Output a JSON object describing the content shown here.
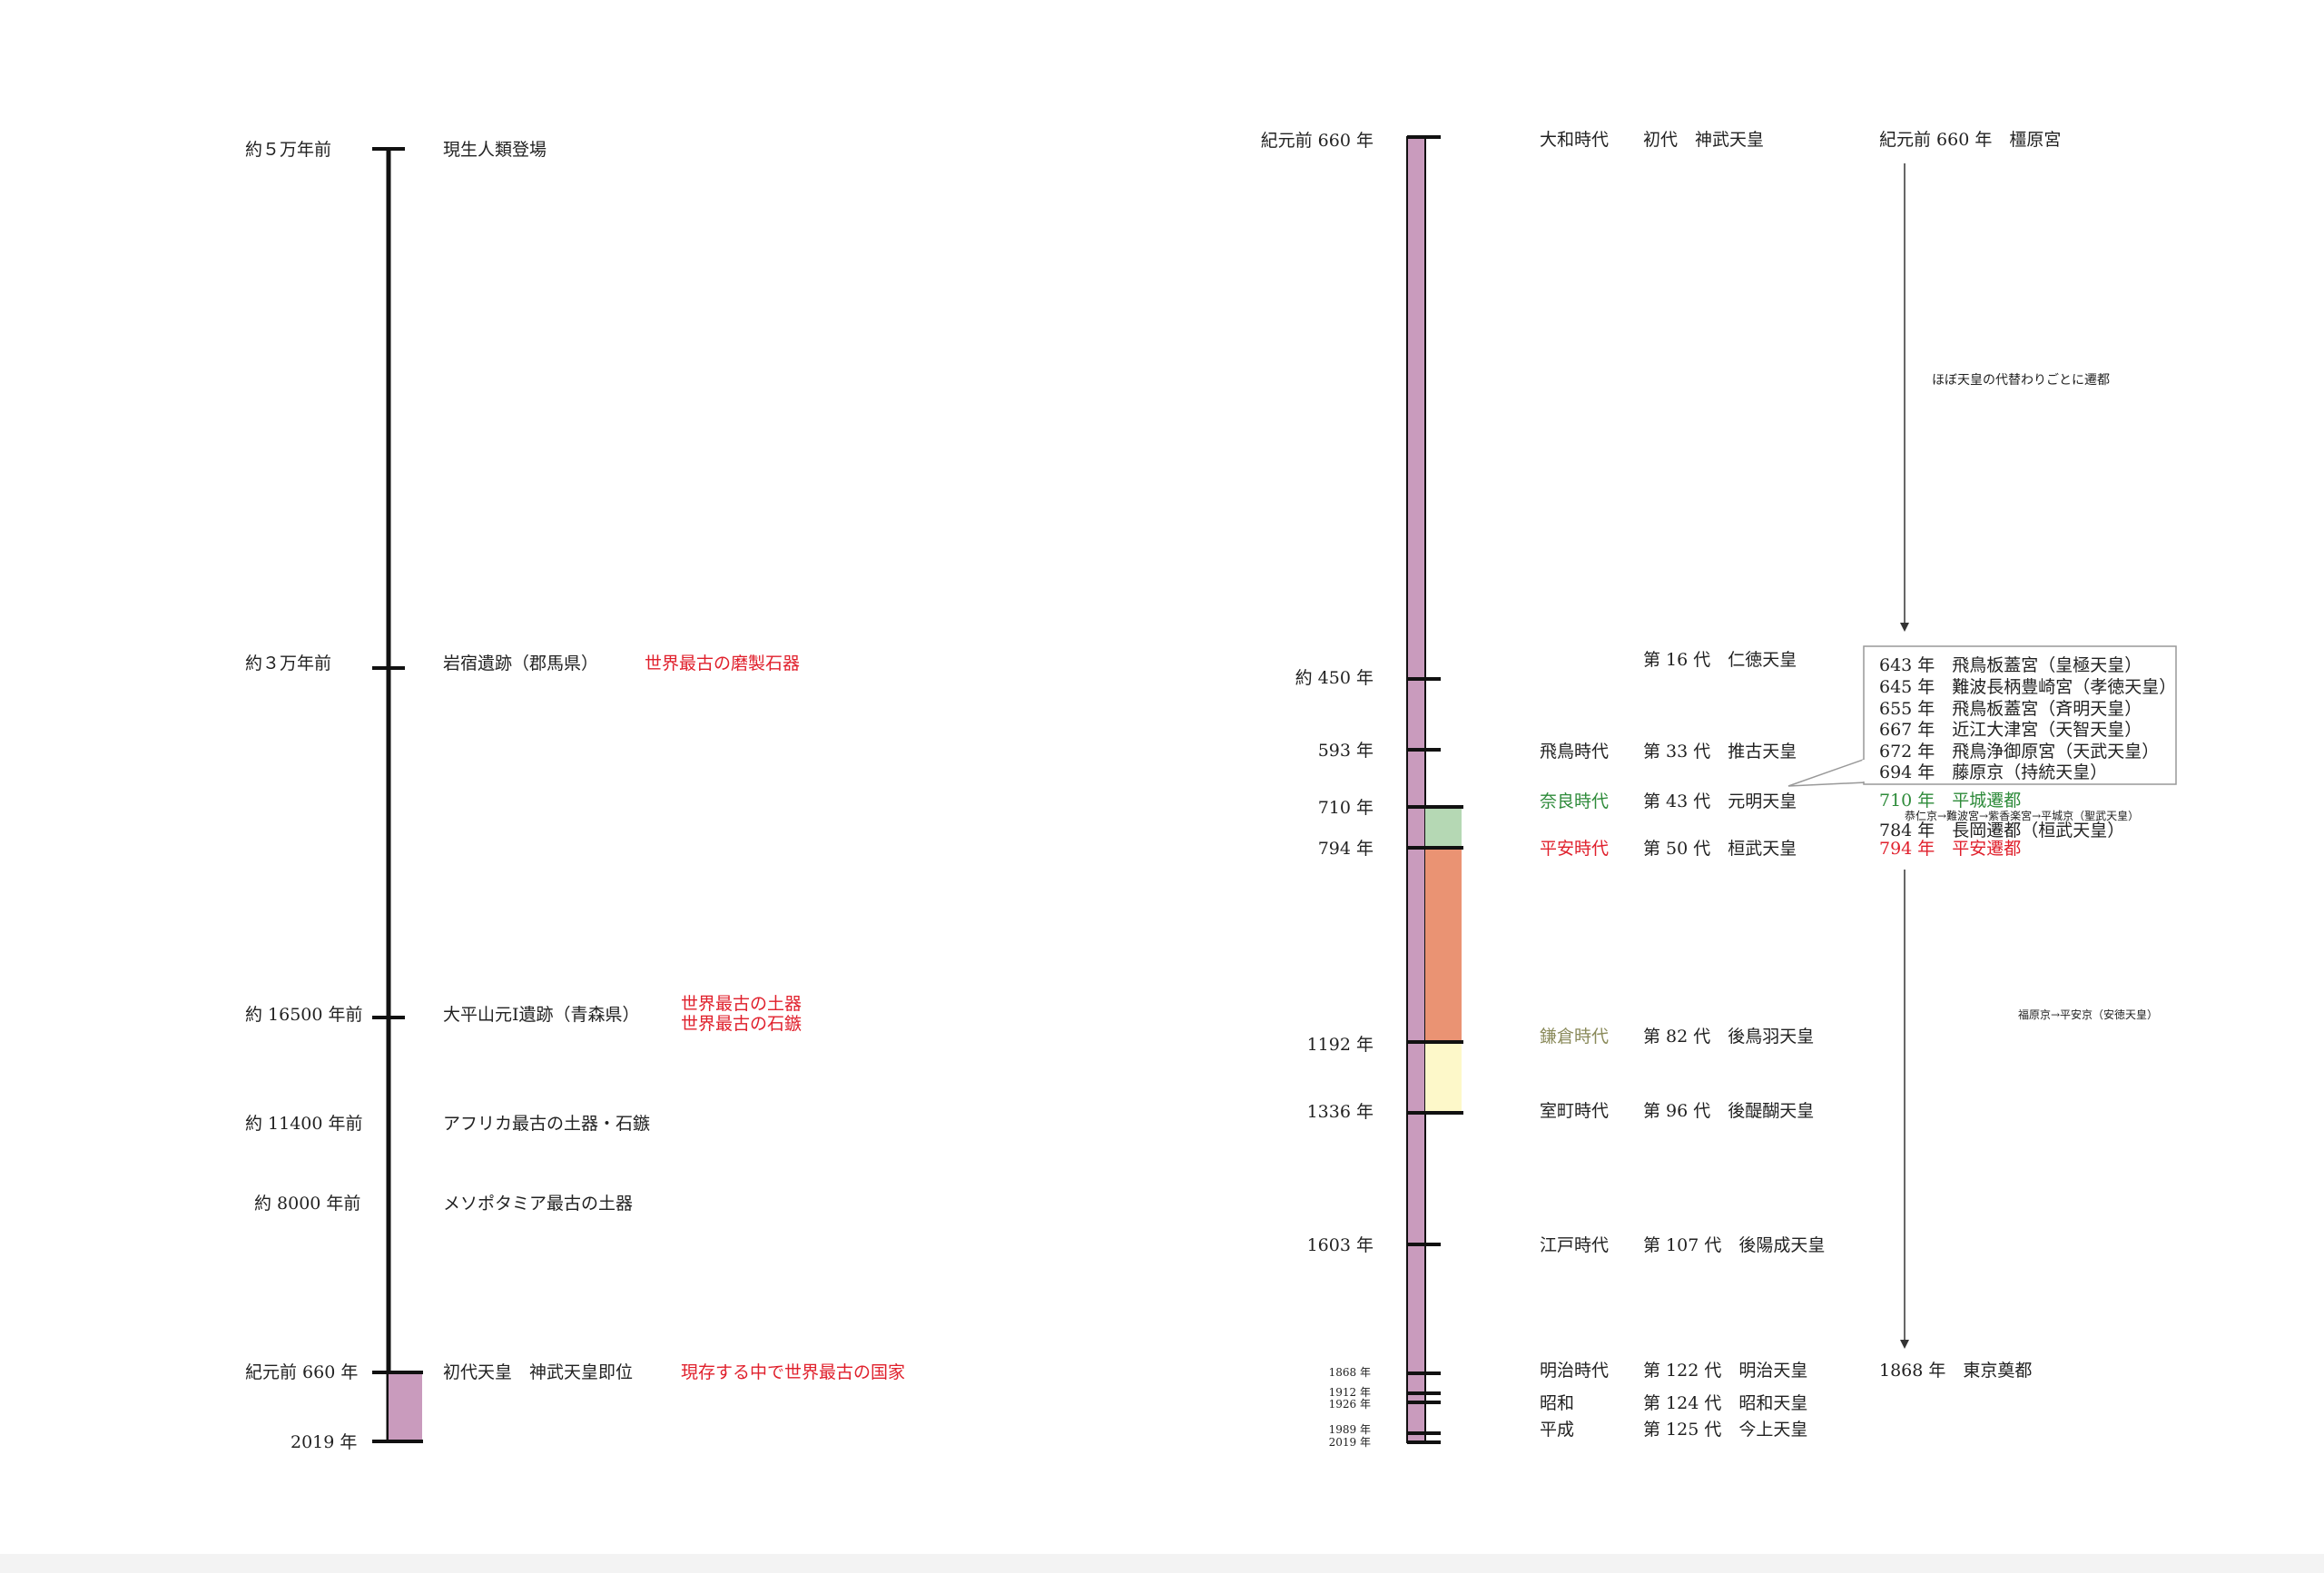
{
  "left": {
    "rows": [
      {
        "date": "約５万年前",
        "event": "現生人類登場",
        "note": ""
      },
      {
        "date": "約３万年前",
        "event": "岩宿遺跡（郡馬県）",
        "note": "世界最古の磨製石器"
      },
      {
        "date": "約 16500 年前",
        "event": "大平山元Ⅰ遺跡（青森県）",
        "note": "世界最古の土器",
        "note2": "世界最古の石鏃"
      },
      {
        "date": "約 11400 年前",
        "event": "アフリカ最古の土器・石鏃",
        "note": ""
      },
      {
        "date": "約 8000 年前",
        "event": "メソポタミア最古の土器",
        "note": ""
      },
      {
        "date": "紀元前 660 年",
        "event": "初代天皇　神武天皇即位",
        "note": "現存する中で世界最古の国家"
      },
      {
        "date": "2019 年",
        "event": "",
        "note": ""
      }
    ]
  },
  "right": {
    "years": {
      "y660": "紀元前 660 年",
      "y450": "約 450 年",
      "y593": "593 年",
      "y710": "710 年",
      "y794": "794 年",
      "y1192": "1192 年",
      "y1336": "1336 年",
      "y1603": "1603 年",
      "y1868": "1868 年",
      "y1912": "1912 年",
      "y1926": "1926 年",
      "y1989": "1989 年",
      "y2019": "2019 年"
    },
    "eras": {
      "yamato": "大和時代",
      "asuka": "飛鳥時代",
      "nara": "奈良時代",
      "heian": "平安時代",
      "kamakura": "鎌倉時代",
      "muromachi": "室町時代",
      "edo": "江戸時代",
      "meiji": "明治時代",
      "showa": "昭和",
      "heisei": "平成"
    },
    "emperors": {
      "e1": "初代　神武天皇",
      "e16": "第 16 代　仁徳天皇",
      "e33": "第 33 代　推古天皇",
      "e43": "第 43 代　元明天皇",
      "e50": "第 50 代　桓武天皇",
      "e82": "第 82 代　後鳥羽天皇",
      "e96": "第 96 代　後醍醐天皇",
      "e107": "第 107 代　後陽成天皇",
      "e122": "第 122 代　明治天皇",
      "e124": "第 124 代　昭和天皇",
      "e125": "第 125 代　今上天皇"
    },
    "capitals": {
      "kashihara": "紀元前 660 年　橿原宮",
      "moves_note": "ほぼ天皇の代替わりごとに遷都",
      "box": [
        "643 年　飛鳥板蓋宮（皇極天皇）",
        "645 年　難波長柄豊崎宮（孝徳天皇）",
        "655 年　飛鳥板蓋宮（斉明天皇）",
        "667 年　近江大津宮（天智天皇）",
        "672 年　飛鳥浄御原宮（天武天皇）",
        "694 年　藤原京（持統天皇）"
      ],
      "heijo": "710 年　平城遷都",
      "heijo_sub": "恭仁京→難波宮→紫香楽宮→平城京（聖武天皇）",
      "nagaoka": "784 年　長岡遷都（桓武天皇）",
      "heian": "794 年　平安遷都",
      "fukuhara": "福原京→平安京（安徳天皇）",
      "tokyo": "1868 年　東京奠都"
    }
  },
  "colors": {
    "axis_fill": "#c99bbd",
    "nara": "#b5d8b4",
    "heian": "#ea9373",
    "kamakura": "#fdf8c9",
    "red": "#e0202c",
    "green": "#2e8b3a",
    "olive": "#8a8a5a"
  }
}
